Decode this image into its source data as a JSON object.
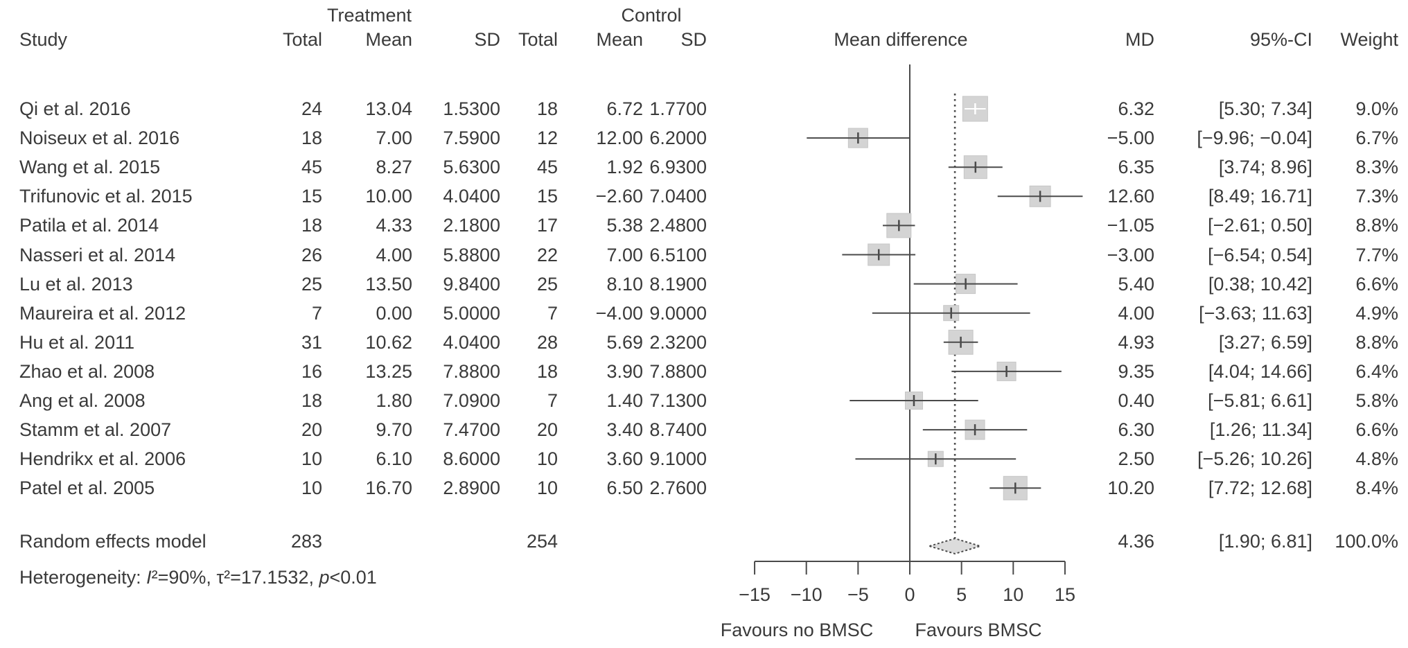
{
  "header": {
    "group_treatment": "Treatment",
    "group_control": "Control",
    "col_study": "Study",
    "col_total": "Total",
    "col_mean": "Mean",
    "col_sd": "SD",
    "col_mean_difference": "Mean difference",
    "col_md": "MD",
    "col_ci": "95%-CI",
    "col_weight": "Weight"
  },
  "colors": {
    "text": "#3a3a3a",
    "line": "#4a4a4a",
    "square_fill": "#d4d4d4",
    "square_edge": "#c6c6c6",
    "diamond_fill": "#dcdcdc",
    "white_overlay": "#ffffff"
  },
  "chart_data": {
    "type": "forest",
    "title": "Mean difference",
    "axis": {
      "min": -15,
      "max": 15,
      "ticks": [
        -15,
        -10,
        -5,
        0,
        5,
        10,
        15
      ],
      "zero_line": 0,
      "overall_line": 4.36,
      "label_left": "Favours no BMSC",
      "label_right": "Favours BMSC"
    },
    "studies": [
      {
        "name": "Qi et al. 2016",
        "t_total": 24,
        "t_mean": 13.04,
        "t_sd": 1.53,
        "c_total": 18,
        "c_mean": 6.72,
        "c_sd": 1.77,
        "md": 6.32,
        "ci_low": 5.3,
        "ci_high": 7.34,
        "weight_pct": 9.0
      },
      {
        "name": "Noiseux et al. 2016",
        "t_total": 18,
        "t_mean": 7.0,
        "t_sd": 7.59,
        "c_total": 12,
        "c_mean": 12.0,
        "c_sd": 6.2,
        "md": -5.0,
        "ci_low": -9.96,
        "ci_high": -0.04,
        "weight_pct": 6.7
      },
      {
        "name": "Wang et al. 2015",
        "t_total": 45,
        "t_mean": 8.27,
        "t_sd": 5.63,
        "c_total": 45,
        "c_mean": 1.92,
        "c_sd": 6.93,
        "md": 6.35,
        "ci_low": 3.74,
        "ci_high": 8.96,
        "weight_pct": 8.3
      },
      {
        "name": "Trifunovic et al. 2015",
        "t_total": 15,
        "t_mean": 10.0,
        "t_sd": 4.04,
        "c_total": 15,
        "c_mean": -2.6,
        "c_sd": 7.04,
        "md": 12.6,
        "ci_low": 8.49,
        "ci_high": 16.71,
        "weight_pct": 7.3
      },
      {
        "name": "Patila et al. 2014",
        "t_total": 18,
        "t_mean": 4.33,
        "t_sd": 2.18,
        "c_total": 17,
        "c_mean": 5.38,
        "c_sd": 2.48,
        "md": -1.05,
        "ci_low": -2.61,
        "ci_high": 0.5,
        "weight_pct": 8.8
      },
      {
        "name": "Nasseri et al. 2014",
        "t_total": 26,
        "t_mean": 4.0,
        "t_sd": 5.88,
        "c_total": 22,
        "c_mean": 7.0,
        "c_sd": 6.51,
        "md": -3.0,
        "ci_low": -6.54,
        "ci_high": 0.54,
        "weight_pct": 7.7
      },
      {
        "name": "Lu et al. 2013",
        "t_total": 25,
        "t_mean": 13.5,
        "t_sd": 9.84,
        "c_total": 25,
        "c_mean": 8.1,
        "c_sd": 8.19,
        "md": 5.4,
        "ci_low": 0.38,
        "ci_high": 10.42,
        "weight_pct": 6.6
      },
      {
        "name": "Maureira et al. 2012",
        "t_total": 7,
        "t_mean": 0.0,
        "t_sd": 5.0,
        "c_total": 7,
        "c_mean": -4.0,
        "c_sd": 9.0,
        "md": 4.0,
        "ci_low": -3.63,
        "ci_high": 11.63,
        "weight_pct": 4.9
      },
      {
        "name": "Hu et al. 2011",
        "t_total": 31,
        "t_mean": 10.62,
        "t_sd": 4.04,
        "c_total": 28,
        "c_mean": 5.69,
        "c_sd": 2.32,
        "md": 4.93,
        "ci_low": 3.27,
        "ci_high": 6.59,
        "weight_pct": 8.8
      },
      {
        "name": "Zhao et al. 2008",
        "t_total": 16,
        "t_mean": 13.25,
        "t_sd": 7.88,
        "c_total": 18,
        "c_mean": 3.9,
        "c_sd": 7.88,
        "md": 9.35,
        "ci_low": 4.04,
        "ci_high": 14.66,
        "weight_pct": 6.4
      },
      {
        "name": "Ang et al. 2008",
        "t_total": 18,
        "t_mean": 1.8,
        "t_sd": 7.09,
        "c_total": 7,
        "c_mean": 1.4,
        "c_sd": 7.13,
        "md": 0.4,
        "ci_low": -5.81,
        "ci_high": 6.61,
        "weight_pct": 5.8
      },
      {
        "name": "Stamm et al. 2007",
        "t_total": 20,
        "t_mean": 9.7,
        "t_sd": 7.47,
        "c_total": 20,
        "c_mean": 3.4,
        "c_sd": 8.74,
        "md": 6.3,
        "ci_low": 1.26,
        "ci_high": 11.34,
        "weight_pct": 6.6
      },
      {
        "name": "Hendrikx et al. 2006",
        "t_total": 10,
        "t_mean": 6.1,
        "t_sd": 8.6,
        "c_total": 10,
        "c_mean": 3.6,
        "c_sd": 9.1,
        "md": 2.5,
        "ci_low": -5.26,
        "ci_high": 10.26,
        "weight_pct": 4.8
      },
      {
        "name": "Patel et al. 2005",
        "t_total": 10,
        "t_mean": 16.7,
        "t_sd": 2.89,
        "c_total": 10,
        "c_mean": 6.5,
        "c_sd": 2.76,
        "md": 10.2,
        "ci_low": 7.72,
        "ci_high": 12.68,
        "weight_pct": 8.4
      }
    ],
    "summary": {
      "label": "Random effects model",
      "treatment_total": 283,
      "control_total": 254,
      "md": 4.36,
      "ci_low": 1.9,
      "ci_high": 6.81,
      "weight_pct": 100.0
    },
    "heterogeneity": {
      "label": "Heterogeneity: ",
      "i_sym": "I",
      "i_rest": "²=90%, ",
      "tau": "τ²=17.1532, ",
      "p_sym": "p",
      "p_rest": "<0.01"
    }
  }
}
